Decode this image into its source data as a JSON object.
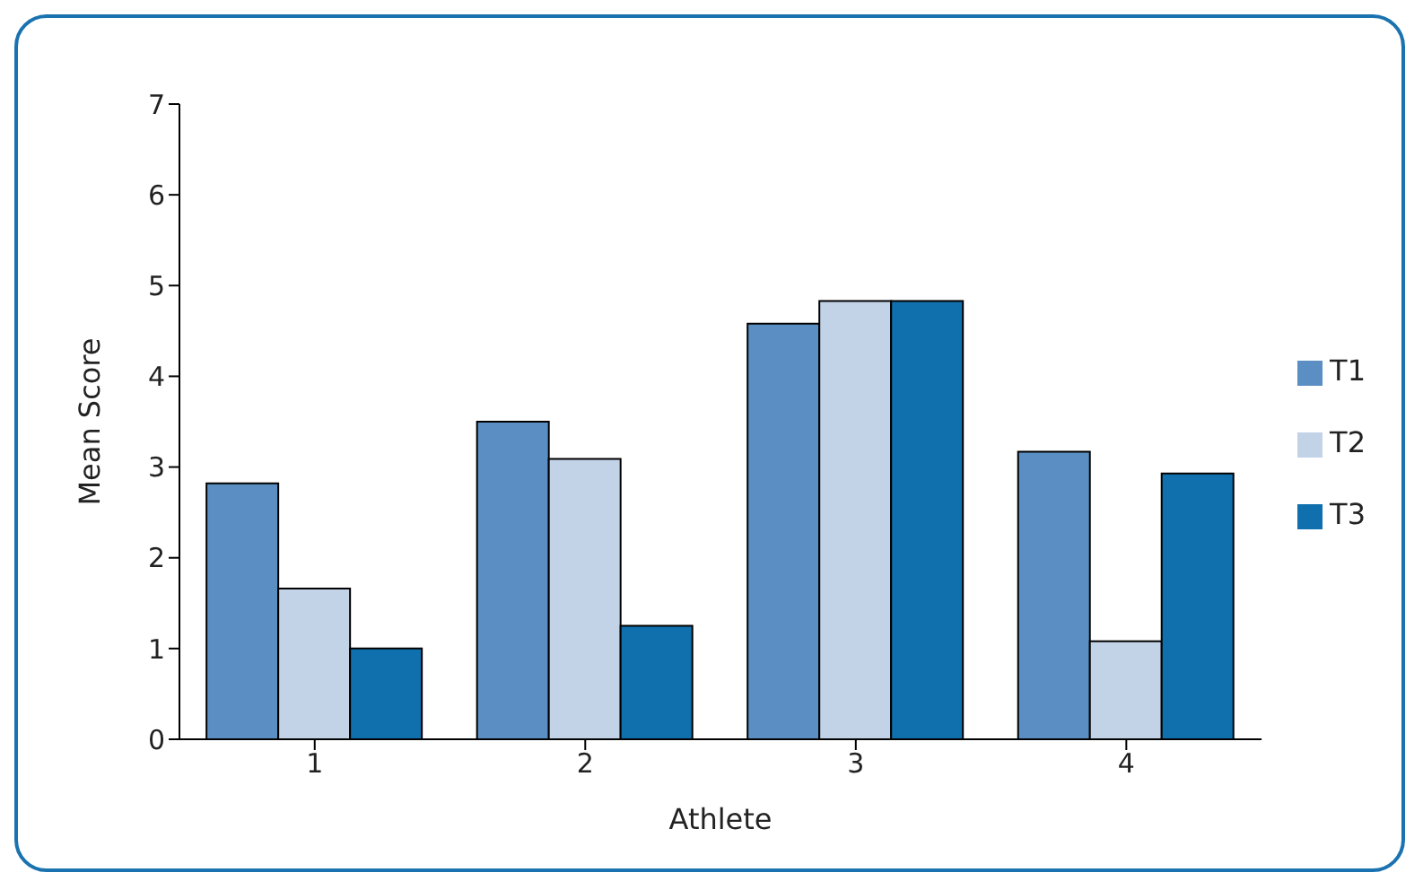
{
  "chart_data": {
    "type": "bar",
    "xlabel": "Athlete",
    "ylabel": "Mean Score",
    "categories": [
      "1",
      "2",
      "3",
      "4"
    ],
    "series": [
      {
        "name": "T1",
        "color": "#5b8fc3",
        "values": [
          2.82,
          3.5,
          4.58,
          3.17
        ]
      },
      {
        "name": "T2",
        "color": "#c2d3e8",
        "values": [
          1.66,
          3.09,
          4.83,
          1.08
        ]
      },
      {
        "name": "T3",
        "color": "#1070ad",
        "values": [
          1.0,
          1.25,
          4.83,
          2.93
        ]
      }
    ],
    "ylim": [
      0,
      7
    ],
    "yticks": [
      0,
      1,
      2,
      3,
      4,
      5,
      6,
      7
    ],
    "grid": false,
    "legend": "right"
  }
}
